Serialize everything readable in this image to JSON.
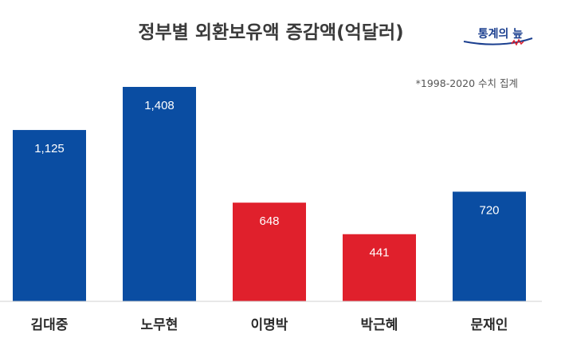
{
  "logo": {
    "text": "통계의 늪"
  },
  "chart_data": {
    "type": "bar",
    "title": "정부별 외환보유액 증감액(억달러)",
    "note": "*1998-2020 수치 집계",
    "categories": [
      "김대중",
      "노무현",
      "이명박",
      "박근혜",
      "문재인"
    ],
    "values": [
      1125,
      1408,
      648,
      441,
      720
    ],
    "value_labels": [
      "1,125",
      "1,408",
      "648",
      "441",
      "720"
    ],
    "colors": [
      "#0a4da2",
      "#0a4da2",
      "#e0202c",
      "#e0202c",
      "#0a4da2"
    ],
    "ylim": [
      0,
      1408
    ],
    "grid": false,
    "legend": "none"
  }
}
